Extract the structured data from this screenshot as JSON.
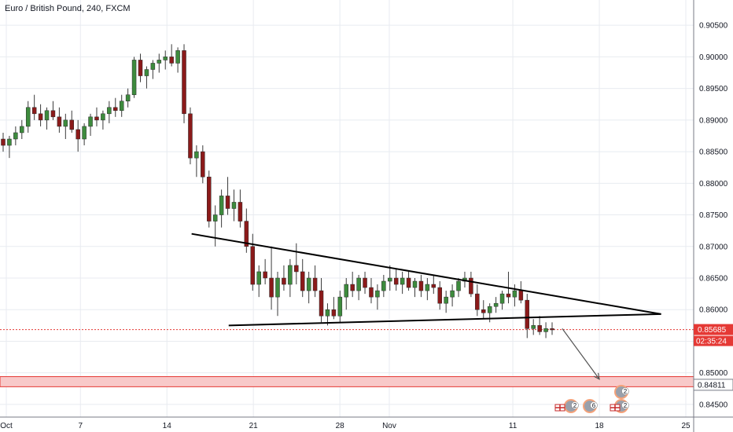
{
  "header": {
    "title": "Euro / British Pound, 240, FXCM"
  },
  "chart_data": {
    "type": "candlestick",
    "title": "Euro / British Pound, 240, FXCM",
    "ylim": [
      0.843,
      0.909
    ],
    "y_ticks": [
      "0.90500",
      "0.90000",
      "0.89500",
      "0.89000",
      "0.88500",
      "0.88000",
      "0.87500",
      "0.87000",
      "0.86500",
      "0.86000",
      "0.85500",
      "0.85000",
      "0.84500"
    ],
    "x_ticks": [
      {
        "label": "Oct",
        "date": "2018-10-01"
      },
      {
        "label": "7",
        "date": "2018-10-07"
      },
      {
        "label": "14",
        "date": "2018-10-14"
      },
      {
        "label": "21",
        "date": "2018-10-21"
      },
      {
        "label": "28",
        "date": "2018-10-28"
      },
      {
        "label": "Nov",
        "date": "2018-11-01"
      },
      {
        "label": "11",
        "date": "2018-11-11"
      },
      {
        "label": "18",
        "date": "2018-11-18"
      },
      {
        "label": "25",
        "date": "2018-11-25"
      }
    ],
    "grid": true,
    "price_levels": [
      {
        "label": "0.85685",
        "value": 0.85685,
        "color": "#e53935",
        "style": "dotted"
      },
      {
        "label": "02:35:24",
        "color": "#e53935"
      },
      {
        "label": "0.84811",
        "value": 0.84811,
        "color": "#e53935",
        "zone": [
          0.8478,
          0.8494
        ]
      }
    ],
    "colors": {
      "up": "#3d8b3d",
      "down": "#8b1a1a",
      "grid": "#e8ebf0",
      "level": "#e53935",
      "zone": "#f8c9c9"
    },
    "candles": [
      [
        0.887,
        0.888,
        0.885,
        0.886
      ],
      [
        0.886,
        0.8875,
        0.884,
        0.887
      ],
      [
        0.887,
        0.889,
        0.886,
        0.888
      ],
      [
        0.888,
        0.89,
        0.887,
        0.889
      ],
      [
        0.889,
        0.893,
        0.888,
        0.892
      ],
      [
        0.892,
        0.894,
        0.89,
        0.891
      ],
      [
        0.891,
        0.8925,
        0.889,
        0.89
      ],
      [
        0.89,
        0.892,
        0.8885,
        0.8915
      ],
      [
        0.8915,
        0.893,
        0.89,
        0.8905
      ],
      [
        0.8905,
        0.892,
        0.888,
        0.889
      ],
      [
        0.889,
        0.891,
        0.887,
        0.89
      ],
      [
        0.89,
        0.8915,
        0.888,
        0.8885
      ],
      [
        0.8885,
        0.89,
        0.885,
        0.887
      ],
      [
        0.887,
        0.8895,
        0.886,
        0.889
      ],
      [
        0.889,
        0.891,
        0.8875,
        0.8905
      ],
      [
        0.8905,
        0.892,
        0.889,
        0.89
      ],
      [
        0.89,
        0.8915,
        0.8885,
        0.891
      ],
      [
        0.891,
        0.893,
        0.8895,
        0.892
      ],
      [
        0.892,
        0.8935,
        0.8905,
        0.8915
      ],
      [
        0.8915,
        0.894,
        0.8905,
        0.893
      ],
      [
        0.893,
        0.895,
        0.892,
        0.894
      ],
      [
        0.894,
        0.9,
        0.8935,
        0.8995
      ],
      [
        0.8995,
        0.9005,
        0.896,
        0.897
      ],
      [
        0.897,
        0.8985,
        0.895,
        0.898
      ],
      [
        0.898,
        0.8995,
        0.8965,
        0.899
      ],
      [
        0.899,
        0.9005,
        0.8975,
        0.8995
      ],
      [
        0.8995,
        0.901,
        0.898,
        0.9
      ],
      [
        0.9,
        0.902,
        0.8985,
        0.899
      ],
      [
        0.899,
        0.9015,
        0.8975,
        0.901
      ],
      [
        0.901,
        0.902,
        0.8895,
        0.891
      ],
      [
        0.891,
        0.892,
        0.883,
        0.884
      ],
      [
        0.884,
        0.886,
        0.881,
        0.885
      ],
      [
        0.885,
        0.886,
        0.88,
        0.881
      ],
      [
        0.881,
        0.882,
        0.873,
        0.874
      ],
      [
        0.874,
        0.8765,
        0.87,
        0.875
      ],
      [
        0.875,
        0.879,
        0.873,
        0.878
      ],
      [
        0.878,
        0.881,
        0.875,
        0.876
      ],
      [
        0.876,
        0.879,
        0.874,
        0.877
      ],
      [
        0.877,
        0.879,
        0.873,
        0.874
      ],
      [
        0.874,
        0.876,
        0.869,
        0.87
      ],
      [
        0.87,
        0.872,
        0.863,
        0.864
      ],
      [
        0.864,
        0.867,
        0.862,
        0.866
      ],
      [
        0.866,
        0.868,
        0.864,
        0.865
      ],
      [
        0.865,
        0.87,
        0.86,
        0.862
      ],
      [
        0.862,
        0.866,
        0.859,
        0.865
      ],
      [
        0.865,
        0.867,
        0.863,
        0.864
      ],
      [
        0.864,
        0.868,
        0.862,
        0.867
      ],
      [
        0.867,
        0.8705,
        0.864,
        0.866
      ],
      [
        0.866,
        0.868,
        0.862,
        0.863
      ],
      [
        0.863,
        0.866,
        0.861,
        0.865
      ],
      [
        0.865,
        0.867,
        0.862,
        0.863
      ],
      [
        0.863,
        0.865,
        0.858,
        0.859
      ],
      [
        0.859,
        0.861,
        0.8575,
        0.86
      ],
      [
        0.86,
        0.862,
        0.8585,
        0.859
      ],
      [
        0.859,
        0.863,
        0.858,
        0.862
      ],
      [
        0.862,
        0.865,
        0.86,
        0.864
      ],
      [
        0.864,
        0.866,
        0.862,
        0.863
      ],
      [
        0.863,
        0.8655,
        0.8615,
        0.865
      ],
      [
        0.865,
        0.866,
        0.8625,
        0.8635
      ],
      [
        0.8635,
        0.865,
        0.861,
        0.862
      ],
      [
        0.862,
        0.864,
        0.86,
        0.863
      ],
      [
        0.863,
        0.8655,
        0.862,
        0.8645
      ],
      [
        0.8645,
        0.867,
        0.863,
        0.865
      ],
      [
        0.865,
        0.8665,
        0.863,
        0.864
      ],
      [
        0.864,
        0.866,
        0.8625,
        0.865
      ],
      [
        0.865,
        0.866,
        0.863,
        0.8635
      ],
      [
        0.8635,
        0.865,
        0.862,
        0.8645
      ],
      [
        0.8645,
        0.8655,
        0.862,
        0.863
      ],
      [
        0.863,
        0.865,
        0.8615,
        0.864
      ],
      [
        0.864,
        0.8655,
        0.8625,
        0.8635
      ],
      [
        0.8635,
        0.8645,
        0.86,
        0.861
      ],
      [
        0.861,
        0.863,
        0.8595,
        0.862
      ],
      [
        0.862,
        0.864,
        0.8605,
        0.863
      ],
      [
        0.863,
        0.865,
        0.862,
        0.8645
      ],
      [
        0.8645,
        0.866,
        0.8635,
        0.865
      ],
      [
        0.865,
        0.866,
        0.862,
        0.8625
      ],
      [
        0.8625,
        0.864,
        0.859,
        0.86
      ],
      [
        0.86,
        0.8615,
        0.8585,
        0.8595
      ],
      [
        0.8595,
        0.861,
        0.858,
        0.8605
      ],
      [
        0.8605,
        0.862,
        0.8595,
        0.861
      ],
      [
        0.861,
        0.863,
        0.86,
        0.8625
      ],
      [
        0.8625,
        0.866,
        0.861,
        0.862
      ],
      [
        0.862,
        0.864,
        0.8605,
        0.863
      ],
      [
        0.863,
        0.8645,
        0.861,
        0.8615
      ],
      [
        0.8615,
        0.8625,
        0.8555,
        0.857
      ],
      [
        0.857,
        0.8585,
        0.856,
        0.8575
      ],
      [
        0.8575,
        0.859,
        0.856,
        0.8565
      ],
      [
        0.8565,
        0.858,
        0.8555,
        0.857
      ],
      [
        0.857,
        0.858,
        0.856,
        0.8568
      ]
    ],
    "annotations": [
      {
        "type": "line",
        "name": "triangle-upper-line",
        "from": {
          "date": "2018-10-16",
          "price": 0.872
        },
        "to": {
          "date": "2018-11-23",
          "price": 0.8593
        }
      },
      {
        "type": "line",
        "name": "triangle-lower-line",
        "from": {
          "date": "2018-10-19",
          "price": 0.8575
        },
        "to": {
          "date": "2018-11-23",
          "price": 0.8593
        }
      },
      {
        "type": "arrow",
        "name": "projection-arrow",
        "from": {
          "date": "2018-11-15",
          "price": 0.857
        },
        "to": {
          "date": "2018-11-18",
          "price": 0.849
        }
      }
    ],
    "event_badges": [
      {
        "label": "2",
        "color": "#f4a27a"
      },
      {
        "label": "6",
        "color": "#f4a27a"
      },
      {
        "label": "2",
        "color": "#f4a27a"
      },
      {
        "label": "2",
        "color": "#f4a27a"
      }
    ]
  }
}
